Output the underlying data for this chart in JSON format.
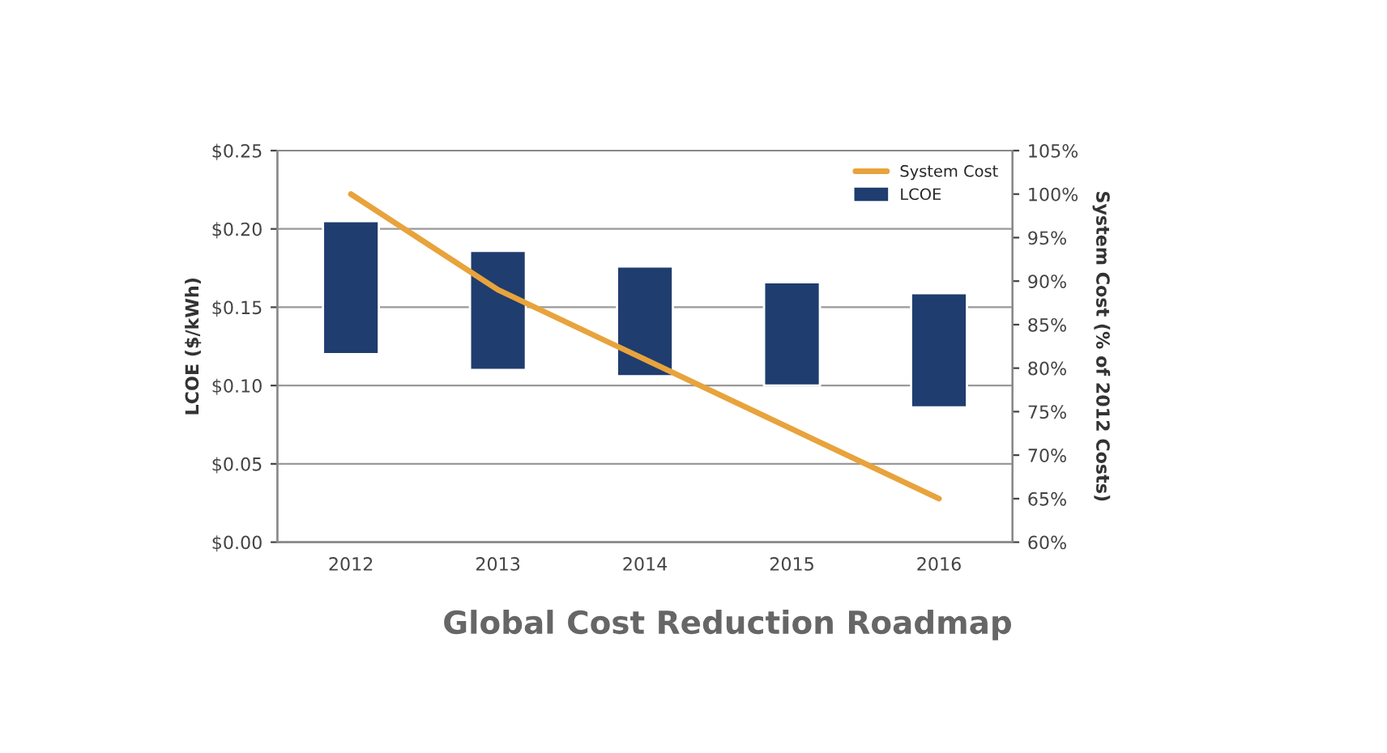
{
  "chart_data": {
    "type": "bar",
    "title": "Global Cost Reduction Roadmap",
    "ylabel": "LCOE ($/kWh)",
    "y2label": "System Cost (% of 2012 Costs)",
    "categories": [
      "2012",
      "2013",
      "2014",
      "2015",
      "2016"
    ],
    "series": [
      {
        "name": "System Cost",
        "type": "line",
        "axis": "y2",
        "color": "#e8a33c",
        "values": [
          100,
          89,
          81,
          73,
          65
        ]
      },
      {
        "name": "LCOE",
        "color": "#1f3d6e",
        "values": [
          0.085,
          0.076,
          0.07,
          0.066,
          0.073
        ],
        "base": [
          0.12,
          0.11,
          0.106,
          0.1,
          0.086
        ]
      }
    ],
    "ylim": [
      0,
      0.25
    ],
    "yticks": [
      {
        "value": 0,
        "label": "$0.00"
      },
      {
        "value": 0.05,
        "label": "$0.05"
      },
      {
        "value": 0.1,
        "label": "$0.10"
      },
      {
        "value": 0.15,
        "label": "$0.15"
      },
      {
        "value": 0.2,
        "label": "$0.20"
      },
      {
        "value": 0.25,
        "label": "$0.25"
      }
    ],
    "y2lim": [
      60,
      105
    ],
    "y2ticks": [
      {
        "value": 60,
        "label": "60%"
      },
      {
        "value": 65,
        "label": "65%"
      },
      {
        "value": 70,
        "label": "70%"
      },
      {
        "value": 75,
        "label": "75%"
      },
      {
        "value": 80,
        "label": "80%"
      },
      {
        "value": 85,
        "label": "85%"
      },
      {
        "value": 90,
        "label": "90%"
      },
      {
        "value": 95,
        "label": "95%"
      },
      {
        "value": 100,
        "label": "100%"
      },
      {
        "value": 105,
        "label": "105%"
      }
    ],
    "grid": "y",
    "legend": "top right",
    "marker": "none",
    "line_style": "solid"
  }
}
